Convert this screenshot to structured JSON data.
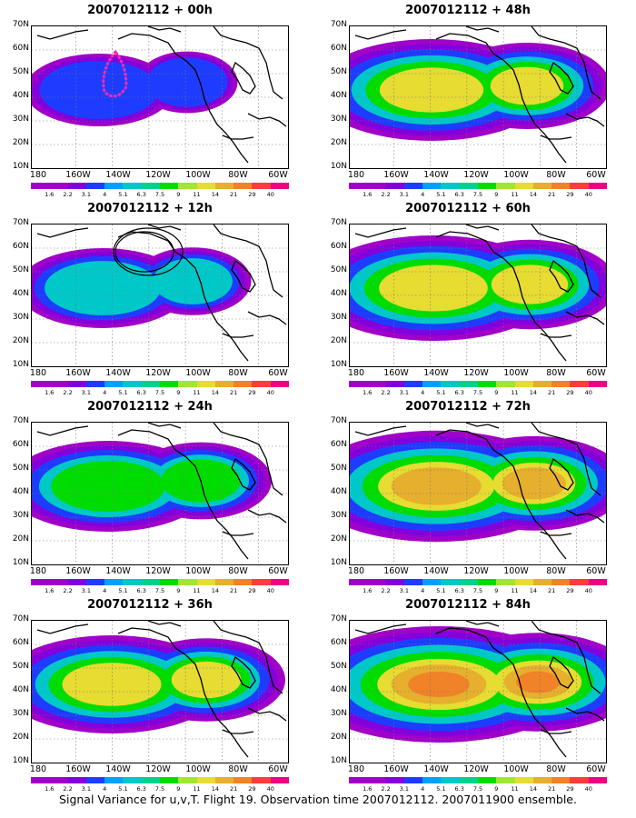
{
  "caption": "Signal Variance for u,v,T. Flight 19. Observation time 2007012112. 2007011900 ensemble.",
  "y_ticks": [
    "70N",
    "60N",
    "50N",
    "40N",
    "30N",
    "20N",
    "10N"
  ],
  "x_ticks": [
    "180",
    "160W",
    "140W",
    "120W",
    "100W",
    "80W",
    "60W"
  ],
  "colorbar": {
    "levels": [
      "1.6",
      "2.2",
      "3.1",
      "4",
      "5.1",
      "6.3",
      "7.5",
      "9",
      "11",
      "14",
      "21",
      "29",
      "40"
    ],
    "colors": [
      "#a000c8",
      "#8200dc",
      "#1e3cff",
      "#00a0ff",
      "#00c8c8",
      "#00d28c",
      "#00dc00",
      "#a0e632",
      "#e6dc32",
      "#e6af2d",
      "#f08228",
      "#fa3c3c",
      "#f00082"
    ]
  },
  "panels": [
    {
      "title": "2007012112 + 00h",
      "intensity": 0.35
    },
    {
      "title": "2007012112 + 12h",
      "intensity": 0.45
    },
    {
      "title": "2007012112 + 24h",
      "intensity": 0.6
    },
    {
      "title": "2007012112 + 36h",
      "intensity": 0.7
    },
    {
      "title": "2007012112 + 48h",
      "intensity": 0.75
    },
    {
      "title": "2007012112 + 60h",
      "intensity": 0.8
    },
    {
      "title": "2007012112 + 72h",
      "intensity": 0.88
    },
    {
      "title": "2007012112 + 84h",
      "intensity": 0.95
    }
  ]
}
